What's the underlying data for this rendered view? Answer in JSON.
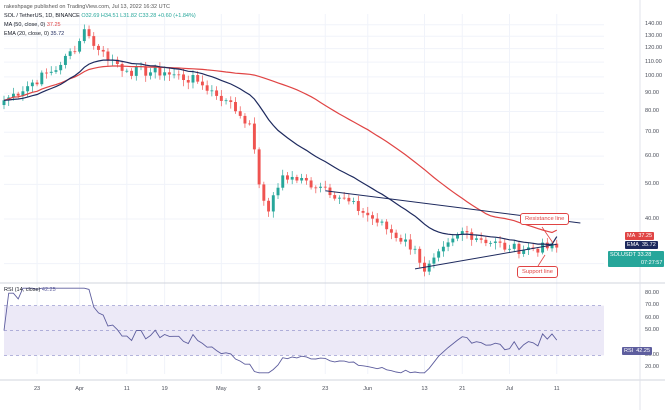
{
  "header": {
    "published": "rakeshpage published on TradingView.com, Jul 13, 2022 16:32 UTC",
    "symbol_line": "SOL / TetherUS, 1D, BINANCE",
    "ohlc": "O32.69 H34.51 L31.82 C33.28 +0.60 (+1.84%)",
    "ma_line": "MA (50, close, 0)",
    "ma_value": "37.25",
    "ema_line": "EMA (20, close, 0)",
    "ema_value": "35.72",
    "rsi_line": "RSI (14, close)",
    "rsi_value": "42.25"
  },
  "price_badges": {
    "ma": {
      "label": "MA",
      "value": "37.25",
      "color": "#e04444"
    },
    "ema": {
      "label": "EMA",
      "value": "35.72",
      "color": "#1e2a5e"
    },
    "last": {
      "label": "SOLUSDT",
      "value": "33.28",
      "sub": "07:27:57",
      "color": "#26a69a"
    },
    "rsi": {
      "label": "RSI",
      "value": "42.25",
      "color": "#5e5e9e"
    }
  },
  "annotations": {
    "resistance": "Resistance line",
    "support": "Support line"
  },
  "colors": {
    "up": "#26a69a",
    "down": "#ef5350",
    "ma": "#e04444",
    "ema": "#1e2a5e",
    "trendline": "#1e2a5e",
    "rsi": "#5e5e9e",
    "rsi_band": "#ece9f7"
  },
  "chart_data": {
    "type": "candlestick",
    "symbol": "SOL / TetherUS",
    "interval": "1D",
    "exchange": "BINANCE",
    "price_axis": {
      "scale": "log",
      "ticks": [
        30,
        40,
        50,
        60,
        70,
        80,
        90,
        100,
        110,
        120,
        130,
        140
      ],
      "labels": [
        "30.00",
        "40.00",
        "50.00",
        "60.00",
        "70.00",
        "80.00",
        "90.00",
        "100.00",
        "110.00",
        "120.00",
        "130.00",
        "140.00"
      ],
      "range": [
        27,
        150
      ]
    },
    "time_axis": {
      "labels": [
        "23",
        "Apr",
        "11",
        "19",
        "May",
        "9",
        "23",
        "Jun",
        "13",
        "21",
        "Jul",
        "11"
      ],
      "range": [
        "2022-03-16",
        "2022-07-21"
      ]
    },
    "ohlc_series": [
      {
        "date": "2022-03-16",
        "close": 86
      },
      {
        "date": "2022-03-28",
        "close": 108
      },
      {
        "date": "2022-04-01",
        "close": 126
      },
      {
        "date": "2022-04-02",
        "close": 136
      },
      {
        "date": "2022-04-05",
        "close": 119
      },
      {
        "date": "2022-04-11",
        "close": 104
      },
      {
        "date": "2022-04-19",
        "close": 103
      },
      {
        "date": "2022-04-26",
        "close": 97
      },
      {
        "date": "2022-05-02",
        "close": 86
      },
      {
        "date": "2022-05-07",
        "close": 74
      },
      {
        "date": "2022-05-09",
        "close": 50
      },
      {
        "date": "2022-05-11",
        "close": 42
      },
      {
        "date": "2022-05-14",
        "close": 53
      },
      {
        "date": "2022-05-23",
        "close": 49
      },
      {
        "date": "2022-06-01",
        "close": 41
      },
      {
        "date": "2022-06-11",
        "close": 33
      },
      {
        "date": "2022-06-13",
        "close": 28.5
      },
      {
        "date": "2022-06-21",
        "close": 37
      },
      {
        "date": "2022-07-01",
        "close": 33
      },
      {
        "date": "2022-07-11",
        "close": 33.28
      }
    ],
    "series": [
      {
        "name": "MA (50, close, 0)",
        "last": 37.25
      },
      {
        "name": "EMA (20, close, 0)",
        "last": 35.72
      }
    ],
    "rsi": {
      "name": "RSI (14, close)",
      "last": 42.25,
      "axis_ticks": [
        20,
        30,
        40,
        50,
        60,
        70,
        80
      ],
      "labels": [
        "20.00",
        "30.00",
        "40.00",
        "50.00",
        "60.00",
        "70.00",
        "80.00"
      ],
      "band": [
        30,
        70
      ],
      "range": [
        15,
        85
      ]
    },
    "trendlines": [
      {
        "name": "Resistance line",
        "from": {
          "date": "2022-05-23",
          "price": 48
        },
        "to": {
          "date": "2022-07-16",
          "price": 39
        }
      },
      {
        "name": "Support line",
        "from": {
          "date": "2022-06-11",
          "price": 29
        },
        "to": {
          "date": "2022-07-11",
          "price": 34
        }
      }
    ]
  }
}
